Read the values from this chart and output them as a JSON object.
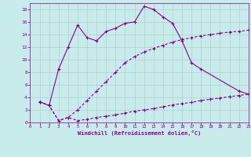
{
  "xlabel": "Windchill (Refroidissement éolien,°C)",
  "bg_color": "#c8ecec",
  "line_color": "#880088",
  "xlim": [
    0,
    23
  ],
  "ylim": [
    0,
    19
  ],
  "xticks": [
    0,
    1,
    2,
    3,
    4,
    5,
    6,
    7,
    8,
    9,
    10,
    11,
    12,
    13,
    14,
    15,
    16,
    17,
    18,
    19,
    20,
    21,
    22,
    23
  ],
  "yticks": [
    0,
    2,
    4,
    6,
    8,
    10,
    12,
    14,
    16,
    18
  ],
  "curve1_x": [
    1,
    2,
    3,
    4,
    5,
    6,
    7,
    8,
    9,
    10,
    11,
    12,
    13,
    14,
    15,
    16,
    17,
    18,
    22,
    23
  ],
  "curve1_y": [
    3.3,
    2.7,
    8.5,
    12.0,
    15.5,
    13.5,
    13.0,
    14.5,
    15.0,
    15.8,
    16.0,
    18.5,
    18.0,
    16.8,
    15.8,
    13.0,
    9.5,
    8.5,
    5.0,
    4.5
  ],
  "curve2_x": [
    1,
    2,
    3,
    4,
    5,
    6,
    7,
    8,
    9,
    10,
    11,
    12,
    13,
    14,
    15,
    16,
    17,
    18,
    19,
    20,
    21,
    22,
    23
  ],
  "curve2_y": [
    3.3,
    2.7,
    0.3,
    0.8,
    2.0,
    3.5,
    5.0,
    6.5,
    8.0,
    9.5,
    10.5,
    11.2,
    11.8,
    12.3,
    12.8,
    13.2,
    13.5,
    13.8,
    14.0,
    14.2,
    14.4,
    14.5,
    14.7
  ],
  "curve3_x": [
    1,
    2,
    3,
    4,
    5,
    6,
    7,
    8,
    9,
    10,
    11,
    12,
    13,
    14,
    15,
    16,
    17,
    18,
    19,
    20,
    21,
    22,
    23
  ],
  "curve3_y": [
    3.3,
    2.7,
    0.3,
    0.8,
    0.3,
    0.5,
    0.8,
    1.0,
    1.2,
    1.5,
    1.8,
    2.0,
    2.2,
    2.5,
    2.8,
    3.0,
    3.2,
    3.5,
    3.7,
    3.9,
    4.1,
    4.3,
    4.5
  ],
  "grid_color": "#b0c8c8",
  "font_color": "#880088"
}
